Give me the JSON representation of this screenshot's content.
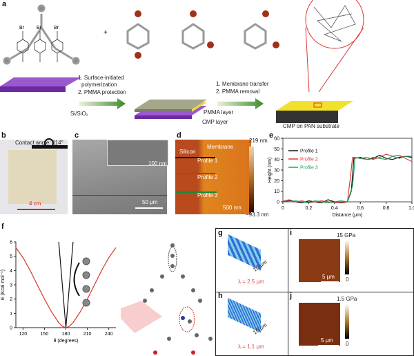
{
  "panels": {
    "a": {
      "label": "a",
      "substrate": "Si/SiO₂",
      "step1": [
        "1. Surface-initiated",
        "polymerization",
        "2. PMMA protection"
      ],
      "step2": [
        "1. Membrane transfer",
        "2. PMMA removal"
      ],
      "pmma_layer": "PMMA layer",
      "cmp_layer": "CMP layer",
      "result": "CMP on PAN substrate",
      "br": "Br",
      "plus": "+"
    },
    "b": {
      "label": "b",
      "contact_angle": "Contact angle: 114°",
      "size": "4 cm"
    },
    "c": {
      "label": "c",
      "inset_scale": "100 nm",
      "scale": "50 μm"
    },
    "d": {
      "label": "d",
      "silicon": "Silicon",
      "membrane": "Membrane",
      "profiles": [
        "Profile 1",
        "Profile 2",
        "Profile 3"
      ],
      "scale": "500 nm",
      "cbar_max": "219 nm",
      "cbar_min": "−93.3 nm"
    },
    "e": {
      "label": "e"
    },
    "f": {
      "label": "f"
    },
    "g": {
      "label": "g",
      "scale": "10 μm",
      "lambda": "λ = 2.5 μm"
    },
    "h": {
      "label": "h",
      "scale": "10 μm",
      "lambda": "λ = 1.1 μm"
    },
    "i": {
      "label": "i",
      "cbar_max": "15 GPa",
      "cbar_min": "0",
      "scale": "5 μm"
    },
    "j": {
      "label": "j",
      "cbar_max": "1.5 GPa",
      "cbar_min": "0",
      "scale": "5 μm"
    }
  },
  "colors": {
    "substrate": "#8a4fc4",
    "pmma": "#9a9a7a",
    "pan": "#f2e12a",
    "profile1": "#111111",
    "profile2": "#e23b3b",
    "profile3": "#1fa35a",
    "energy_red": "#d63a2a",
    "afm": "#c8651c",
    "lambda_text": "#e04a4a"
  },
  "chart_data": [
    {
      "panel": "e",
      "type": "line",
      "xlabel": "Distance (μm)",
      "ylabel": "Height (nm)",
      "xlim": [
        0,
        1.0
      ],
      "ylim": [
        0,
        60
      ],
      "xticks": [
        "0",
        "0.2",
        "0.4",
        "0.6",
        "0.8",
        "1.0"
      ],
      "yticks": [
        "0",
        "10",
        "20",
        "30",
        "40",
        "50",
        "60"
      ],
      "legend": "top-left",
      "series": [
        {
          "name": "Profile 1",
          "color": "#111111",
          "x": [
            0,
            0.05,
            0.1,
            0.15,
            0.2,
            0.25,
            0.3,
            0.35,
            0.4,
            0.45,
            0.5,
            0.53,
            0.55,
            0.6,
            0.65,
            0.7,
            0.75,
            0.8,
            0.85,
            0.9,
            0.95,
            1.0
          ],
          "y": [
            0,
            1,
            0,
            -1,
            1,
            0,
            -1,
            2,
            0,
            -1,
            0,
            10,
            41,
            42,
            40,
            41,
            44,
            41,
            40,
            42,
            43,
            42
          ]
        },
        {
          "name": "Profile 2",
          "color": "#e23b3b",
          "x": [
            0,
            0.05,
            0.1,
            0.15,
            0.2,
            0.25,
            0.3,
            0.35,
            0.4,
            0.45,
            0.5,
            0.52,
            0.54,
            0.6,
            0.65,
            0.7,
            0.75,
            0.8,
            0.85,
            0.9,
            0.95,
            1.0
          ],
          "y": [
            1,
            2,
            0,
            1,
            -1,
            0,
            1,
            0,
            -1,
            0,
            0,
            20,
            42,
            41,
            42,
            40,
            42,
            45,
            43,
            44,
            41,
            38
          ]
        },
        {
          "name": "Profile 3",
          "color": "#1fa35a",
          "x": [
            0,
            0.05,
            0.1,
            0.15,
            0.2,
            0.25,
            0.3,
            0.35,
            0.4,
            0.45,
            0.5,
            0.54,
            0.56,
            0.6,
            0.65,
            0.7,
            0.75,
            0.8,
            0.85,
            0.9,
            0.95,
            1.0
          ],
          "y": [
            0,
            0,
            1,
            0,
            -1,
            1,
            0,
            -1,
            0,
            1,
            0,
            15,
            42,
            41,
            40,
            42,
            41,
            40,
            43,
            41,
            43,
            43
          ]
        }
      ]
    },
    {
      "panel": "f",
      "type": "line",
      "xlabel": "θ (degrees)",
      "ylabel": "E (Kcal mol⁻¹)",
      "xlim": [
        110,
        250
      ],
      "ylim": [
        0,
        6
      ],
      "xticks": [
        "120",
        "150",
        "180",
        "210",
        "240"
      ],
      "yticks": [
        "0",
        "1",
        "2",
        "3",
        "4",
        "5",
        "6"
      ],
      "series": [
        {
          "color": "#111111",
          "x": [
            170,
            180,
            190
          ],
          "y": [
            6,
            0,
            6
          ]
        },
        {
          "color": "#d63a2a",
          "x": [
            110,
            120,
            130,
            140,
            150,
            160,
            170,
            175,
            180,
            185,
            190,
            200,
            210,
            220,
            230,
            240,
            250
          ],
          "y": [
            5.6,
            4.9,
            4.0,
            3.0,
            2.0,
            1.1,
            0.35,
            0.1,
            0,
            0.1,
            0.35,
            1.1,
            2.0,
            3.0,
            4.0,
            4.9,
            5.6
          ]
        }
      ]
    }
  ]
}
